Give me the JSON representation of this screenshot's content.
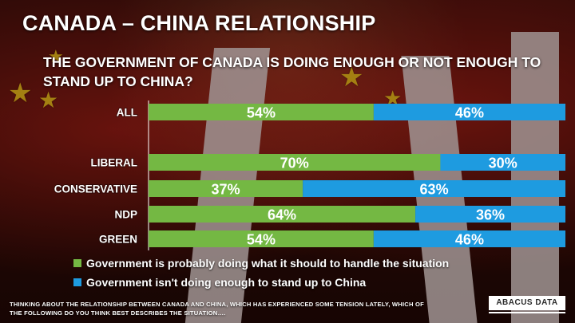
{
  "header": {
    "title": "CANADA – CHINA RELATIONSHIP",
    "subtitle": "THE GOVERNMENT OF CANADA IS DOING ENOUGH OR NOT ENOUGH TO STAND UP TO CHINA?"
  },
  "colors": {
    "green": "#74b843",
    "blue": "#1e9be0"
  },
  "chart_data": {
    "type": "bar",
    "orientation": "horizontal",
    "stacked": true,
    "categories": [
      "ALL",
      "LIBERAL",
      "CONSERVATIVE",
      "NDP",
      "GREEN"
    ],
    "series": [
      {
        "name": "Government is probably doing what it should to handle the situation",
        "values": [
          54,
          70,
          37,
          64,
          54
        ]
      },
      {
        "name": "Government isn't doing enough to stand up to China",
        "values": [
          46,
          30,
          63,
          36,
          46
        ]
      }
    ],
    "value_labels": [
      [
        "54%",
        "70%",
        "37%",
        "64%",
        "54%"
      ],
      [
        "46%",
        "30%",
        "63%",
        "36%",
        "46%"
      ]
    ],
    "xlim": [
      0,
      100
    ],
    "legend_position": "bottom-left",
    "grid": false
  },
  "footnote": "THINKING ABOUT THE RELATIONSHIP BETWEEN CANADA AND CHINA, WHICH HAS EXPERIENCED SOME TENSION LATELY, WHICH OF THE FOLLOWING DO YOU THINK BEST DESCRIBES THE SITUATION….",
  "logo": {
    "text": "ABACUS DATA"
  }
}
